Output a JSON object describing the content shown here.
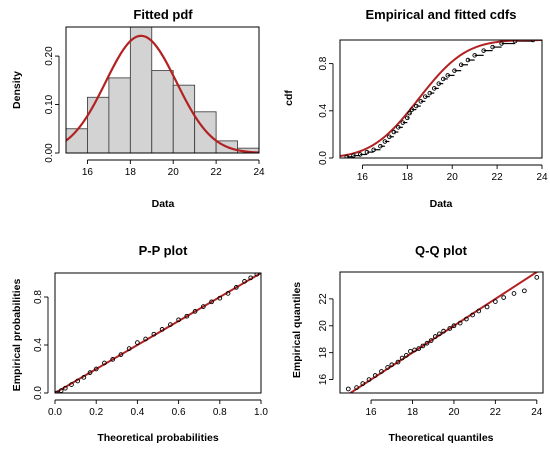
{
  "chart_data": [
    {
      "type": "bar",
      "title": "Fitted pdf",
      "xlabel": "Data",
      "ylabel": "Density",
      "xlim": [
        15,
        24
      ],
      "ylim": [
        0,
        0.26
      ],
      "xticks": [
        16,
        18,
        20,
        22,
        24
      ],
      "yticks": [
        0.0,
        0.1,
        0.2
      ],
      "ytick_labels": [
        "0.00",
        "0.10",
        "0.20"
      ],
      "bins": [
        {
          "x0": 15,
          "x1": 16,
          "density": 0.05
        },
        {
          "x0": 16,
          "x1": 17,
          "density": 0.115
        },
        {
          "x0": 17,
          "x1": 18,
          "density": 0.155
        },
        {
          "x0": 18,
          "x1": 19,
          "density": 0.265
        },
        {
          "x0": 19,
          "x1": 20,
          "density": 0.17
        },
        {
          "x0": 20,
          "x1": 21,
          "density": 0.14
        },
        {
          "x0": 21,
          "x1": 22,
          "density": 0.085
        },
        {
          "x0": 22,
          "x1": 23,
          "density": 0.025
        },
        {
          "x0": 23,
          "x1": 24,
          "density": 0.01
        }
      ],
      "fitted_curve": {
        "distribution": "normal",
        "mean": 18.5,
        "sd": 1.65
      },
      "bar_color": "#d3d3d3",
      "curve_color": "#b22222"
    },
    {
      "type": "line",
      "title": "Empirical and fitted cdfs",
      "xlabel": "Data",
      "ylabel": "cdf",
      "xlim": [
        15,
        24
      ],
      "ylim": [
        0,
        1
      ],
      "xticks": [
        16,
        18,
        20,
        22,
        24
      ],
      "yticks": [
        0.0,
        0.4,
        0.8
      ],
      "ytick_labels": [
        "0.0",
        "0.4",
        "0.8"
      ],
      "empirical_points": [
        [
          15.3,
          0.01
        ],
        [
          15.6,
          0.02
        ],
        [
          15.9,
          0.03
        ],
        [
          16.2,
          0.05
        ],
        [
          16.5,
          0.07
        ],
        [
          16.8,
          0.1
        ],
        [
          17.0,
          0.14
        ],
        [
          17.2,
          0.18
        ],
        [
          17.4,
          0.22
        ],
        [
          17.6,
          0.26
        ],
        [
          17.8,
          0.3
        ],
        [
          18.0,
          0.34
        ],
        [
          18.1,
          0.38
        ],
        [
          18.2,
          0.41
        ],
        [
          18.4,
          0.44
        ],
        [
          18.6,
          0.48
        ],
        [
          18.8,
          0.52
        ],
        [
          19.0,
          0.55
        ],
        [
          19.2,
          0.59
        ],
        [
          19.4,
          0.63
        ],
        [
          19.6,
          0.67
        ],
        [
          19.8,
          0.7
        ],
        [
          20.1,
          0.74
        ],
        [
          20.4,
          0.79
        ],
        [
          20.7,
          0.83
        ],
        [
          21.0,
          0.87
        ],
        [
          21.4,
          0.91
        ],
        [
          21.8,
          0.94
        ],
        [
          22.2,
          0.97
        ],
        [
          22.8,
          0.99
        ],
        [
          23.6,
          1.0
        ]
      ],
      "fitted_curve": {
        "distribution": "normal",
        "mean": 18.5,
        "sd": 1.65
      },
      "curve_color": "#b22222"
    },
    {
      "type": "scatter",
      "title": "P-P plot",
      "xlabel": "Theoretical probabilities",
      "ylabel": "Empirical probabilities",
      "xlim": [
        0,
        1
      ],
      "ylim": [
        0,
        1
      ],
      "xticks": [
        0.0,
        0.2,
        0.4,
        0.6,
        0.8,
        1.0
      ],
      "xtick_labels": [
        "0.0",
        "0.2",
        "0.4",
        "0.6",
        "0.8",
        "1.0"
      ],
      "yticks": [
        0.0,
        0.4,
        0.8
      ],
      "ytick_labels": [
        "0.0",
        "0.4",
        "0.8"
      ],
      "points": [
        [
          0.01,
          0.0
        ],
        [
          0.03,
          0.02
        ],
        [
          0.05,
          0.04
        ],
        [
          0.08,
          0.07
        ],
        [
          0.11,
          0.1
        ],
        [
          0.14,
          0.13
        ],
        [
          0.17,
          0.17
        ],
        [
          0.2,
          0.2
        ],
        [
          0.24,
          0.25
        ],
        [
          0.28,
          0.28
        ],
        [
          0.32,
          0.32
        ],
        [
          0.36,
          0.37
        ],
        [
          0.4,
          0.42
        ],
        [
          0.44,
          0.45
        ],
        [
          0.48,
          0.49
        ],
        [
          0.52,
          0.53
        ],
        [
          0.56,
          0.57
        ],
        [
          0.6,
          0.61
        ],
        [
          0.64,
          0.64
        ],
        [
          0.68,
          0.68
        ],
        [
          0.72,
          0.72
        ],
        [
          0.76,
          0.76
        ],
        [
          0.8,
          0.79
        ],
        [
          0.84,
          0.83
        ],
        [
          0.88,
          0.88
        ],
        [
          0.92,
          0.93
        ],
        [
          0.95,
          0.96
        ],
        [
          0.98,
          0.99
        ]
      ],
      "reference_line": "y=x",
      "line_color": "#b22222"
    },
    {
      "type": "scatter",
      "title": "Q-Q plot",
      "xlabel": "Theoretical quantiles",
      "ylabel": "Empirical quantiles",
      "xlim": [
        14.5,
        24.3
      ],
      "ylim": [
        15,
        24
      ],
      "xticks": [
        16,
        18,
        20,
        22,
        24
      ],
      "yticks": [
        16,
        18,
        20,
        22
      ],
      "points": [
        [
          14.9,
          15.3
        ],
        [
          15.3,
          15.4
        ],
        [
          15.6,
          15.7
        ],
        [
          15.9,
          16.0
        ],
        [
          16.2,
          16.3
        ],
        [
          16.5,
          16.6
        ],
        [
          16.8,
          16.9
        ],
        [
          17.0,
          17.1
        ],
        [
          17.3,
          17.3
        ],
        [
          17.5,
          17.6
        ],
        [
          17.7,
          17.8
        ],
        [
          17.9,
          18.1
        ],
        [
          18.1,
          18.2
        ],
        [
          18.3,
          18.3
        ],
        [
          18.5,
          18.5
        ],
        [
          18.7,
          18.7
        ],
        [
          18.9,
          18.9
        ],
        [
          19.1,
          19.2
        ],
        [
          19.3,
          19.4
        ],
        [
          19.5,
          19.6
        ],
        [
          19.8,
          19.8
        ],
        [
          20.0,
          20.0
        ],
        [
          20.3,
          20.2
        ],
        [
          20.6,
          20.5
        ],
        [
          20.9,
          20.8
        ],
        [
          21.2,
          21.1
        ],
        [
          21.6,
          21.4
        ],
        [
          22.0,
          21.8
        ],
        [
          22.4,
          22.1
        ],
        [
          22.9,
          22.4
        ],
        [
          23.4,
          22.6
        ],
        [
          24.0,
          23.6
        ]
      ],
      "reference_line": "y=x",
      "line_color": "#b22222"
    }
  ]
}
